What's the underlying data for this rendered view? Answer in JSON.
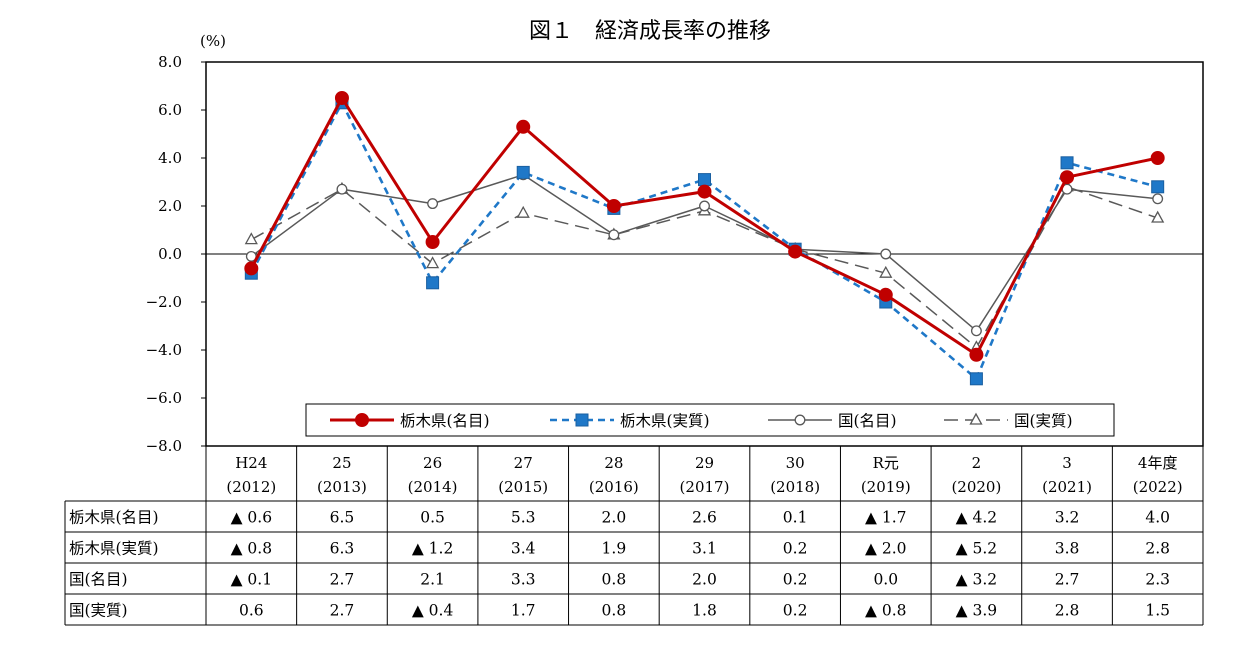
{
  "chart_data": {
    "type": "line",
    "title": "図１　経済成長率の推移",
    "yunit": "(%)",
    "ylim": [
      -8.0,
      8.0
    ],
    "yticks": [
      "8.0",
      "6.0",
      "4.0",
      "2.0",
      "0.0",
      "−2.0",
      "−4.0",
      "−6.0",
      "−8.0"
    ],
    "ytick_values": [
      8,
      6,
      4,
      2,
      0,
      -2,
      -4,
      -6,
      -8
    ],
    "categories": [
      {
        "top": "H24",
        "bottom": "(2012)"
      },
      {
        "top": "25",
        "bottom": "(2013)"
      },
      {
        "top": "26",
        "bottom": "(2014)"
      },
      {
        "top": "27",
        "bottom": "(2015)"
      },
      {
        "top": "28",
        "bottom": "(2016)"
      },
      {
        "top": "29",
        "bottom": "(2017)"
      },
      {
        "top": "30",
        "bottom": "(2018)"
      },
      {
        "top": "R元",
        "bottom": "(2019)"
      },
      {
        "top": "2",
        "bottom": "(2020)"
      },
      {
        "top": "3",
        "bottom": "(2021)"
      },
      {
        "top": "4年度",
        "bottom": "(2022)"
      }
    ],
    "series": [
      {
        "name": "栃木県(名目)",
        "color": "#c00000",
        "marker": "circle",
        "dash": "solid",
        "values": [
          -0.6,
          6.5,
          0.5,
          5.3,
          2.0,
          2.6,
          0.1,
          -1.7,
          -4.2,
          3.2,
          4.0
        ],
        "labels": [
          "▲ 0.6",
          "6.5",
          "0.5",
          "5.3",
          "2.0",
          "2.6",
          "0.1",
          "▲ 1.7",
          "▲ 4.2",
          "3.2",
          "4.0"
        ]
      },
      {
        "name": "栃木県(実質)",
        "color": "#1f78c8",
        "marker": "square",
        "dash": "dashed",
        "values": [
          -0.8,
          6.3,
          -1.2,
          3.4,
          1.9,
          3.1,
          0.2,
          -2.0,
          -5.2,
          3.8,
          2.8
        ],
        "labels": [
          "▲ 0.8",
          "6.3",
          "▲ 1.2",
          "3.4",
          "1.9",
          "3.1",
          "0.2",
          "▲ 2.0",
          "▲ 5.2",
          "3.8",
          "2.8"
        ]
      },
      {
        "name": "国(名目)",
        "color": "#595959",
        "marker": "open-circle",
        "dash": "solid",
        "values": [
          -0.1,
          2.7,
          2.1,
          3.3,
          0.8,
          2.0,
          0.2,
          0.0,
          -3.2,
          2.7,
          2.3
        ],
        "labels": [
          "▲ 0.1",
          "2.7",
          "2.1",
          "3.3",
          "0.8",
          "2.0",
          "0.2",
          "0.0",
          "▲ 3.2",
          "2.7",
          "2.3"
        ]
      },
      {
        "name": "国(実質)",
        "color": "#595959",
        "marker": "open-triangle",
        "dash": "longdash",
        "values": [
          0.6,
          2.7,
          -0.4,
          1.7,
          0.8,
          1.8,
          0.2,
          -0.8,
          -3.9,
          2.8,
          1.5
        ],
        "labels": [
          "0.6",
          "2.7",
          "▲ 0.4",
          "1.7",
          "0.8",
          "1.8",
          "0.2",
          "▲ 0.8",
          "▲ 3.9",
          "2.8",
          "1.5"
        ]
      }
    ],
    "legend": "bottom-inside",
    "grid": false
  }
}
